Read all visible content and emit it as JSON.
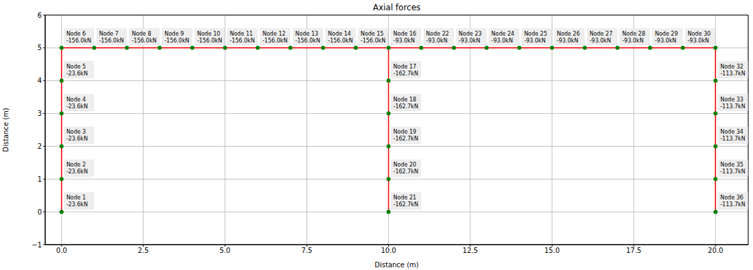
{
  "chart_data": {
    "type": "scatter",
    "title": "Axial forces",
    "x_label": "Distance (m)",
    "y_label": "Distance (m)",
    "xlim": [
      -0.5,
      21
    ],
    "ylim": [
      -1,
      6
    ],
    "xticks": [
      {
        "value": 0,
        "label": "0.0"
      },
      {
        "value": 2.5,
        "label": "2.5"
      },
      {
        "value": 5,
        "label": "5.0"
      },
      {
        "value": 7.5,
        "label": "7.5"
      },
      {
        "value": 10,
        "label": "10.0"
      },
      {
        "value": 12.5,
        "label": "12.5"
      },
      {
        "value": 15,
        "label": "15.0"
      },
      {
        "value": 17.5,
        "label": "17.5"
      },
      {
        "value": 20,
        "label": "20.0"
      }
    ],
    "yticks": [
      {
        "value": -1,
        "label": "−1"
      },
      0,
      1,
      2,
      3,
      4,
      5,
      6
    ],
    "grid": true,
    "marker": "circle",
    "color": "#008000",
    "members": {
      "color": "#ff0000",
      "line_style": "solid",
      "segments": [
        {
          "x": [
            0,
            0
          ],
          "y": [
            0,
            5
          ]
        },
        {
          "x": [
            0,
            20
          ],
          "y": [
            5,
            5
          ]
        },
        {
          "x": [
            10,
            10
          ],
          "y": [
            0,
            5
          ]
        },
        {
          "x": [
            20,
            20
          ],
          "y": [
            0,
            5
          ]
        }
      ]
    },
    "nodes": [
      {
        "x": 0,
        "y": 0,
        "name": "Node 1",
        "force": "-23.6kN"
      },
      {
        "x": 0,
        "y": 1,
        "name": "Node 2",
        "force": "-23.6kN"
      },
      {
        "x": 0,
        "y": 2,
        "name": "Node 3",
        "force": "-23.6kN"
      },
      {
        "x": 0,
        "y": 3,
        "name": "Node 4",
        "force": "-23.6kN"
      },
      {
        "x": 0,
        "y": 4,
        "name": "Node 5",
        "force": "-23.6kN"
      },
      {
        "x": 0,
        "y": 5,
        "name": "Node 6",
        "force": "-156.0kN"
      },
      {
        "x": 1,
        "y": 5,
        "name": "Node 7",
        "force": "-156.0kN"
      },
      {
        "x": 2,
        "y": 5,
        "name": "Node 8",
        "force": "-156.0kN"
      },
      {
        "x": 3,
        "y": 5,
        "name": "Node 9",
        "force": "-156.0kN"
      },
      {
        "x": 4,
        "y": 5,
        "name": "Node 10",
        "force": "-156.0kN"
      },
      {
        "x": 5,
        "y": 5,
        "name": "Node 11",
        "force": "-156.0kN"
      },
      {
        "x": 6,
        "y": 5,
        "name": "Node 12",
        "force": "-156.0kN"
      },
      {
        "x": 7,
        "y": 5,
        "name": "Node 13",
        "force": "-156.0kN"
      },
      {
        "x": 8,
        "y": 5,
        "name": "Node 14",
        "force": "-156.0kN"
      },
      {
        "x": 9,
        "y": 5,
        "name": "Node 15",
        "force": "-156.0kN"
      },
      {
        "x": 10,
        "y": 5,
        "name": "Node 16",
        "force": "-93.0kN"
      },
      {
        "x": 10,
        "y": 4,
        "name": "Node 17",
        "force": "-162.7kN"
      },
      {
        "x": 10,
        "y": 3,
        "name": "Node 18",
        "force": "-162.7kN"
      },
      {
        "x": 10,
        "y": 2,
        "name": "Node 19",
        "force": "-162.7kN"
      },
      {
        "x": 10,
        "y": 1,
        "name": "Node 20",
        "force": "-162.7kN"
      },
      {
        "x": 10,
        "y": 0,
        "name": "Node 21",
        "force": "-162.7kN"
      },
      {
        "x": 11,
        "y": 5,
        "name": "Node 22",
        "force": "-93.0kN"
      },
      {
        "x": 12,
        "y": 5,
        "name": "Node 23",
        "force": "-93.0kN"
      },
      {
        "x": 13,
        "y": 5,
        "name": "Node 24",
        "force": "-93.0kN"
      },
      {
        "x": 14,
        "y": 5,
        "name": "Node 25",
        "force": "-93.0kN"
      },
      {
        "x": 15,
        "y": 5,
        "name": "Node 26",
        "force": "-93.0kN"
      },
      {
        "x": 16,
        "y": 5,
        "name": "Node 27",
        "force": "-93.0kN"
      },
      {
        "x": 17,
        "y": 5,
        "name": "Node 28",
        "force": "-93.0kN"
      },
      {
        "x": 18,
        "y": 5,
        "name": "Node 29",
        "force": "-93.0kN"
      },
      {
        "x": 19,
        "y": 5,
        "name": "Node 30",
        "force": "-93.0kN"
      },
      {
        "x": 20,
        "y": 5
      },
      {
        "x": 20,
        "y": 4,
        "name": "Node 32",
        "force": "-113.7kN"
      },
      {
        "x": 20,
        "y": 3,
        "name": "Node 33",
        "force": "-113.7kN"
      },
      {
        "x": 20,
        "y": 2,
        "name": "Node 34",
        "force": "-113.7kN"
      },
      {
        "x": 20,
        "y": 1,
        "name": "Node 35",
        "force": "-113.7kN"
      },
      {
        "x": 20,
        "y": 0,
        "name": "Node 36",
        "force": "-113.7kN"
      }
    ]
  }
}
